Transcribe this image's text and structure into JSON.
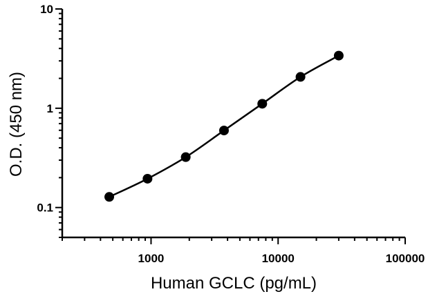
{
  "chart_data": {
    "type": "scatter",
    "title": "",
    "xlabel": "Human GCLC (pg/mL)",
    "ylabel": "O.D. (450 nm)",
    "x_scale": "log",
    "y_scale": "log",
    "xlim": [
      200,
      100000
    ],
    "ylim": [
      0.05,
      10
    ],
    "x_tick_values": [
      1000,
      10000,
      100000
    ],
    "x_tick_labels": [
      "1000",
      "10000",
      "100000"
    ],
    "y_tick_values": [
      0.1,
      1,
      10
    ],
    "y_tick_labels": [
      "0.1",
      "1",
      "10"
    ],
    "grid": false,
    "legend": "none",
    "series": [
      {
        "x": [
          469,
          938,
          1875,
          3750,
          7500,
          15000,
          30000
        ],
        "y": [
          0.128,
          0.195,
          0.322,
          0.597,
          1.11,
          2.07,
          3.39
        ],
        "fit_line": true,
        "marker": "circle",
        "color": "#000000"
      }
    ]
  }
}
